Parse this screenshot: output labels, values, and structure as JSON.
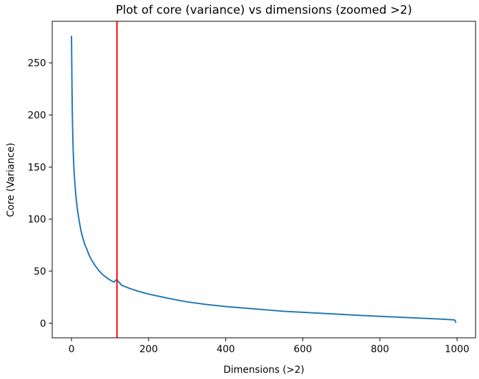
{
  "chart_data": {
    "type": "line",
    "title": "Plot of core (variance) vs dimensions (zoomed >2)",
    "xlabel": "Dimensions (>2)",
    "ylabel": "Core (Variance)",
    "xlim": [
      -50,
      1048
    ],
    "ylim": [
      -14,
      290
    ],
    "xticks": [
      0,
      200,
      400,
      600,
      800,
      1000
    ],
    "yticks": [
      0,
      50,
      100,
      150,
      200,
      250
    ],
    "grid": false,
    "legend": "none",
    "series": [
      {
        "color": "#1f77b4",
        "x": [
          0,
          1,
          2,
          3,
          4,
          5,
          6,
          8,
          10,
          12,
          15,
          18,
          20,
          25,
          30,
          35,
          40,
          45,
          50,
          60,
          70,
          80,
          90,
          100,
          110,
          117,
          130,
          150,
          175,
          200,
          250,
          300,
          350,
          400,
          450,
          500,
          550,
          600,
          650,
          700,
          750,
          800,
          850,
          900,
          950,
          990,
          994,
          996,
          997
        ],
        "y": [
          276,
          235,
          205,
          185,
          170,
          160,
          150,
          138,
          128,
          120,
          110,
          103,
          98,
          88,
          81,
          75,
          71,
          66,
          62,
          56,
          51,
          47,
          44,
          41.5,
          39.5,
          42,
          36.5,
          33.5,
          30.5,
          28,
          24,
          20.5,
          18,
          16,
          14.5,
          13,
          11.5,
          10.5,
          9.5,
          8.5,
          7.5,
          6.6,
          5.8,
          5,
          4.1,
          3.3,
          3,
          1.5,
          0.5
        ]
      }
    ],
    "vline": {
      "x": 118,
      "color": "#ff0000"
    }
  }
}
